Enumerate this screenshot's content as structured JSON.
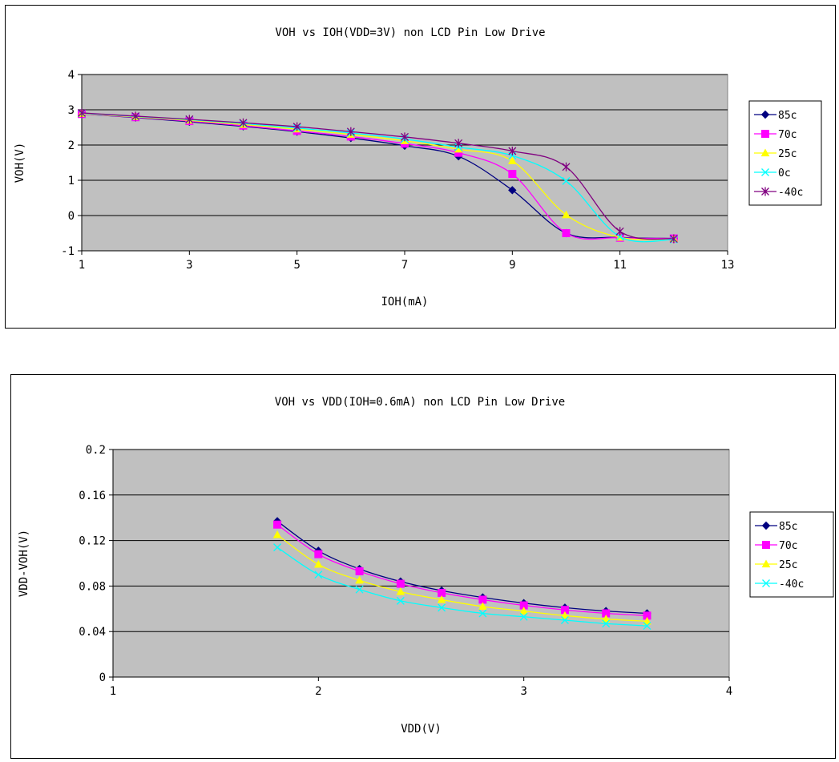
{
  "chart_data": [
    {
      "type": "line",
      "title": "VOH vs IOH(VDD=3V) non LCD Pin Low Drive",
      "xlabel": "IOH(mA)",
      "ylabel": "VOH(V)",
      "xlim": [
        1,
        13
      ],
      "ylim": [
        -1,
        4
      ],
      "x_ticks": [
        "1",
        "3",
        "5",
        "7",
        "9",
        "11",
        "13"
      ],
      "y_ticks": [
        "-1",
        "0",
        "1",
        "2",
        "3",
        "4"
      ],
      "grid": "horizontal",
      "legend_position": "right",
      "plot_background": "#c0c0c0",
      "x": [
        1,
        2,
        3,
        4,
        5,
        6,
        7,
        8,
        9,
        10,
        11,
        12
      ],
      "series": [
        {
          "name": "85c",
          "color": "#000080",
          "marker": "diamond",
          "values": [
            2.88,
            2.78,
            2.66,
            2.53,
            2.38,
            2.2,
            1.98,
            1.68,
            0.72,
            -0.5,
            -0.62,
            -0.65
          ]
        },
        {
          "name": "70c",
          "color": "#ff00ff",
          "marker": "square",
          "values": [
            2.88,
            2.79,
            2.68,
            2.55,
            2.4,
            2.24,
            2.04,
            1.78,
            1.18,
            -0.5,
            -0.63,
            -0.65
          ]
        },
        {
          "name": "25c",
          "color": "#ffff00",
          "marker": "triangle",
          "values": [
            2.89,
            2.8,
            2.7,
            2.58,
            2.45,
            2.3,
            2.12,
            1.88,
            1.55,
            0.02,
            -0.62,
            -0.66
          ]
        },
        {
          "name": "0c",
          "color": "#00ffff",
          "marker": "x",
          "values": [
            2.9,
            2.81,
            2.72,
            2.61,
            2.48,
            2.34,
            2.17,
            1.94,
            1.7,
            0.98,
            -0.6,
            -0.68
          ]
        },
        {
          "name": "-40c",
          "color": "#800080",
          "marker": "star",
          "values": [
            2.91,
            2.82,
            2.73,
            2.63,
            2.52,
            2.38,
            2.23,
            2.05,
            1.83,
            1.38,
            -0.45,
            -0.66
          ]
        }
      ]
    },
    {
      "type": "line",
      "title": "VOH vs VDD(IOH=0.6mA) non LCD Pin Low Drive",
      "xlabel": "VDD(V)",
      "ylabel": "VDD-VOH(V)",
      "xlim": [
        1,
        4
      ],
      "ylim": [
        0,
        0.2
      ],
      "x_ticks": [
        "1",
        "2",
        "3",
        "4"
      ],
      "y_ticks": [
        "0",
        "0.04",
        "0.08",
        "0.12",
        "0.16",
        "0.2"
      ],
      "grid": "horizontal",
      "legend_position": "right",
      "plot_background": "#c0c0c0",
      "x": [
        1.8,
        2.0,
        2.2,
        2.4,
        2.6,
        2.8,
        3.0,
        3.2,
        3.4,
        3.6
      ],
      "series": [
        {
          "name": "85c",
          "color": "#000080",
          "marker": "diamond",
          "values": [
            0.137,
            0.111,
            0.095,
            0.084,
            0.076,
            0.07,
            0.065,
            0.061,
            0.058,
            0.056
          ]
        },
        {
          "name": "70c",
          "color": "#ff00ff",
          "marker": "square",
          "values": [
            0.134,
            0.108,
            0.093,
            0.082,
            0.074,
            0.068,
            0.063,
            0.059,
            0.056,
            0.054
          ]
        },
        {
          "name": "25c",
          "color": "#ffff00",
          "marker": "triangle",
          "values": [
            0.125,
            0.099,
            0.085,
            0.075,
            0.068,
            0.062,
            0.058,
            0.054,
            0.051,
            0.049
          ]
        },
        {
          "name": "-40c",
          "color": "#00ffff",
          "marker": "x",
          "values": [
            0.114,
            0.09,
            0.077,
            0.067,
            0.061,
            0.056,
            0.053,
            0.05,
            0.047,
            0.045
          ]
        }
      ]
    }
  ]
}
